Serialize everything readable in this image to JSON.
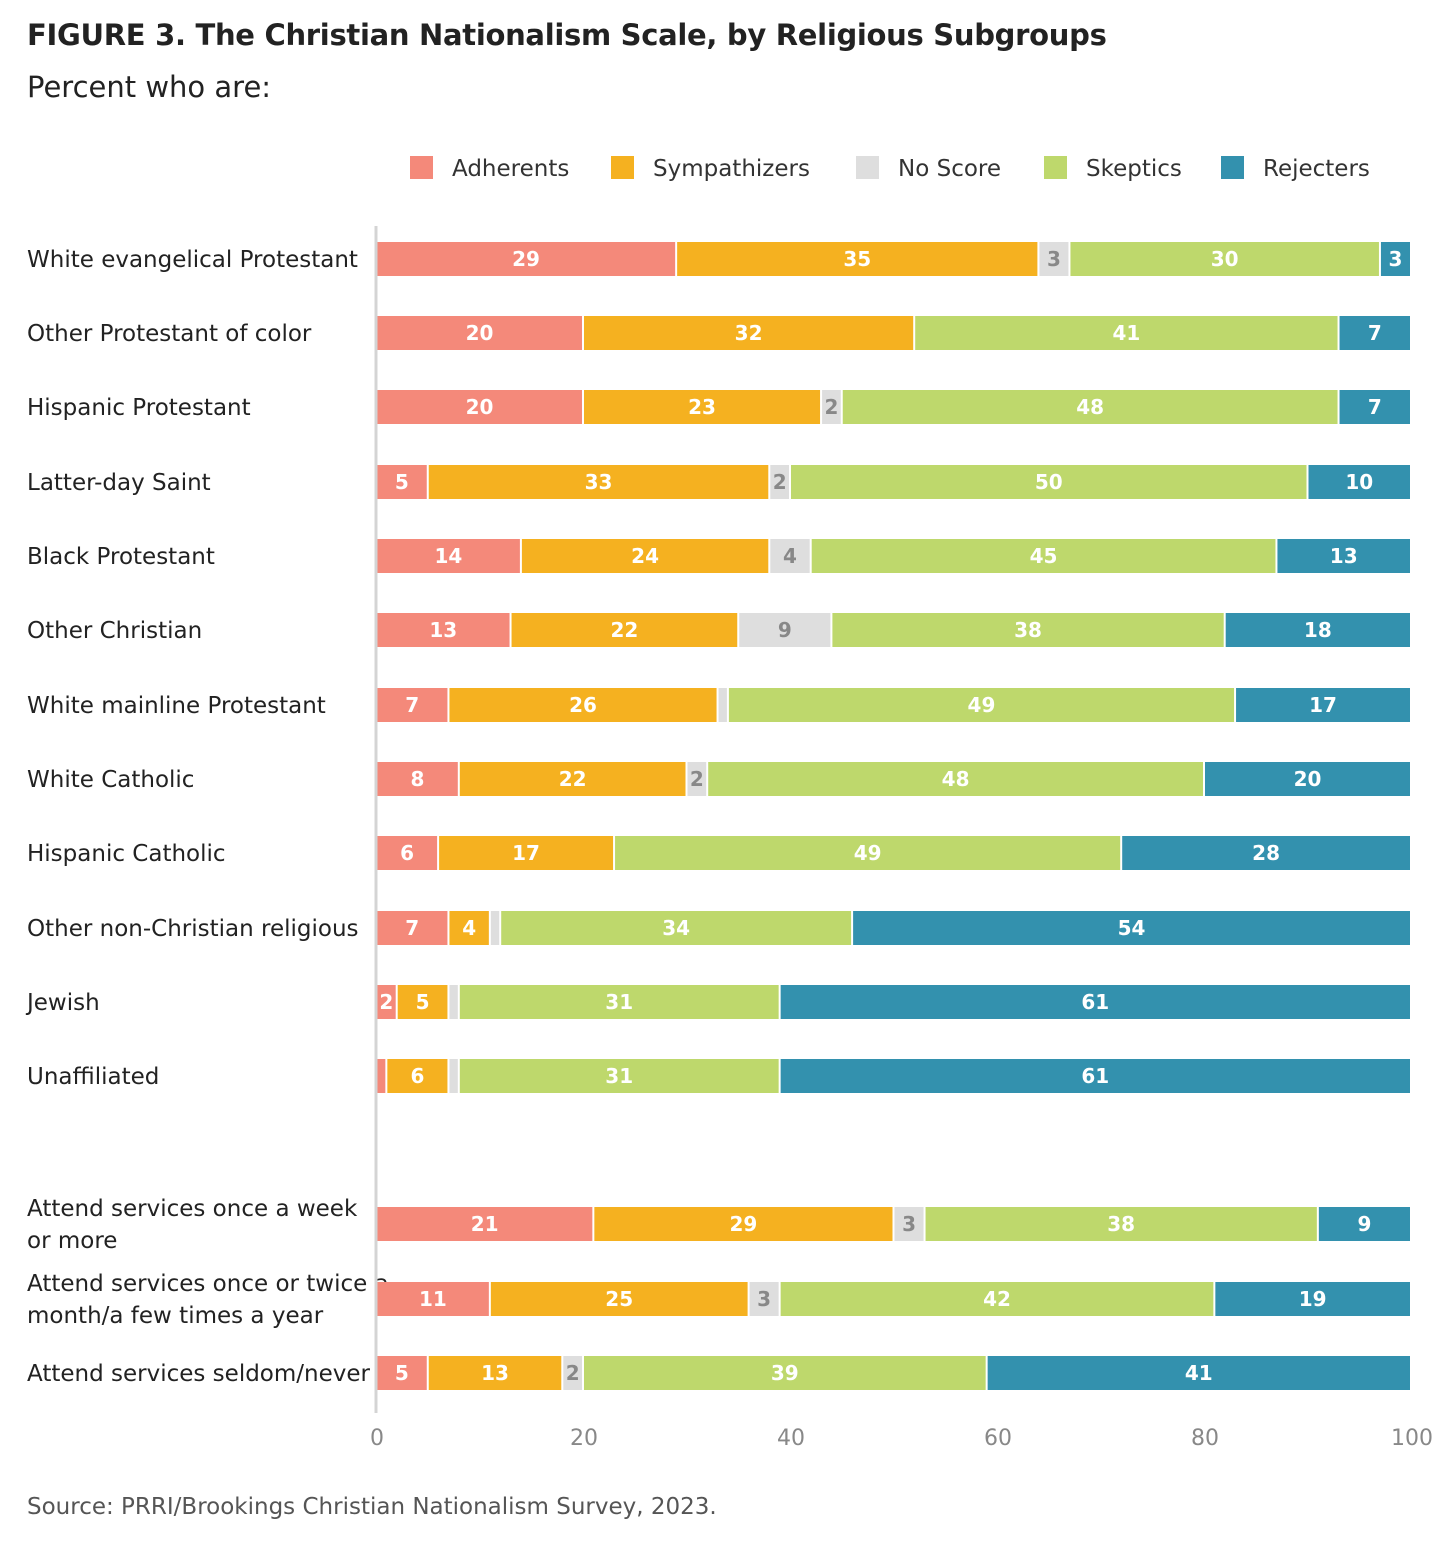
{
  "chart_data": {
    "type": "bar",
    "orientation": "horizontal",
    "stacked": true,
    "title": "FIGURE 3. The Christian Nationalism Scale, by Religious Subgroups",
    "subtitle": "Percent who are:",
    "source": "Source: PRRI/Brookings Christian Nationalism Survey, 2023.",
    "xlim": [
      0,
      100
    ],
    "xticks": [
      "0",
      "20",
      "40",
      "60",
      "80",
      "100"
    ],
    "legend_position": "top",
    "categories": [
      "White evangelical Protestant",
      "Other Protestant of color",
      "Hispanic Protestant",
      "Latter-day Saint",
      "Black Protestant",
      "Other Christian",
      "White mainline Protestant",
      "White Catholic",
      "Hispanic Catholic",
      "Other non-Christian religious",
      "Jewish",
      "Unaffiliated",
      "Attend services once a week or more",
      "Attend services once or twice a month/a few times a year",
      "Attend services seldom/never"
    ],
    "series": [
      {
        "name": "Adherents",
        "color": "#F4897A",
        "label_color": "#ffffff",
        "values": [
          29,
          20,
          20,
          5,
          14,
          13,
          7,
          8,
          6,
          7,
          2,
          1,
          21,
          11,
          5
        ],
        "labels": [
          "29",
          "20",
          "20",
          "5",
          "14",
          "13",
          "7",
          "8",
          "6",
          "7",
          "2",
          "",
          "21",
          "11",
          "5"
        ]
      },
      {
        "name": "Sympathizers",
        "color": "#F5B120",
        "label_color": "#ffffff",
        "values": [
          35,
          32,
          23,
          33,
          24,
          22,
          26,
          22,
          17,
          4,
          5,
          6,
          29,
          25,
          13
        ],
        "labels": [
          "35",
          "32",
          "23",
          "33",
          "24",
          "22",
          "26",
          "22",
          "17",
          "4",
          "5",
          "6",
          "29",
          "25",
          "13"
        ]
      },
      {
        "name": "No Score",
        "color": "#DEDEDE",
        "label_color": "#888888",
        "values": [
          3,
          0,
          2,
          2,
          4,
          9,
          1,
          2,
          0,
          1,
          1,
          1,
          3,
          3,
          2
        ],
        "labels": [
          "3",
          "",
          "2",
          "2",
          "4",
          "9",
          "",
          "2",
          "",
          "",
          "",
          "",
          "3",
          "3",
          "2"
        ]
      },
      {
        "name": "Skeptics",
        "color": "#BED86C",
        "label_color": "#ffffff",
        "values": [
          30,
          41,
          48,
          50,
          45,
          38,
          49,
          48,
          49,
          34,
          31,
          31,
          38,
          42,
          39
        ],
        "labels": [
          "30",
          "41",
          "48",
          "50",
          "45",
          "38",
          "49",
          "48",
          "49",
          "34",
          "31",
          "31",
          "38",
          "42",
          "39"
        ]
      },
      {
        "name": "Rejecters",
        "color": "#3391AE",
        "label_color": "#ffffff",
        "values": [
          3,
          7,
          7,
          10,
          13,
          18,
          17,
          20,
          28,
          54,
          61,
          61,
          9,
          19,
          41
        ],
        "labels": [
          "3",
          "7",
          "7",
          "10",
          "13",
          "18",
          "17",
          "20",
          "28",
          "54",
          "61",
          "61",
          "9",
          "19",
          "41"
        ]
      }
    ]
  }
}
